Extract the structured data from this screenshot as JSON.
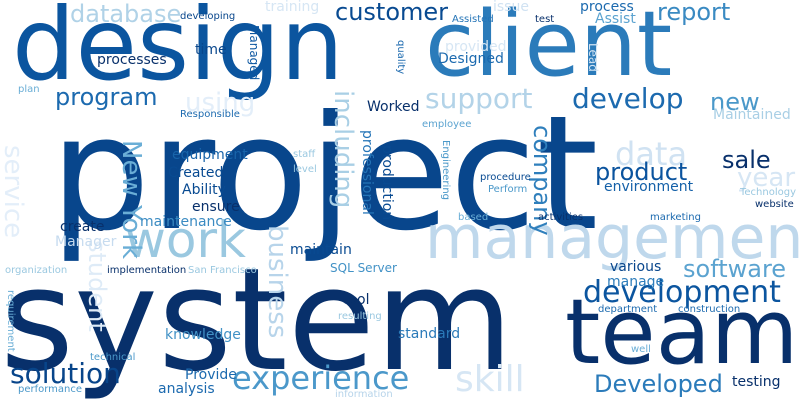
{
  "words": [
    {
      "text": "project",
      "color": "#08468c"
    },
    {
      "text": "system",
      "color": "#08306b"
    },
    {
      "text": "design",
      "color": "#0b559f"
    },
    {
      "text": "client",
      "color": "#2b7bba"
    },
    {
      "text": "team",
      "color": "#08306b"
    },
    {
      "text": "management",
      "color": "#bfd8ec"
    },
    {
      "text": "work",
      "color": "#9ac8e0"
    },
    {
      "text": "experience",
      "color": "#4b98ca"
    },
    {
      "text": "development",
      "color": "#0b559f"
    },
    {
      "text": "skill",
      "color": "#d6e6f4"
    },
    {
      "text": "customer",
      "color": "#084a91"
    },
    {
      "text": "report",
      "color": "#3a8ac2"
    },
    {
      "text": "program",
      "color": "#1c6aaf"
    },
    {
      "text": "support",
      "color": "#b3d3e8"
    },
    {
      "text": "develop",
      "color": "#1c6aaf"
    },
    {
      "text": "data",
      "color": "#d0e2f2"
    },
    {
      "text": "product",
      "color": "#0a539e"
    },
    {
      "text": "sale",
      "color": "#08306b"
    },
    {
      "text": "year",
      "color": "#d6e6f4"
    },
    {
      "text": "company",
      "color": "#2f7fbc"
    },
    {
      "text": "software",
      "color": "#5ba3d0"
    },
    {
      "text": "Developed",
      "color": "#2b7bba"
    },
    {
      "text": "solution",
      "color": "#08458a"
    },
    {
      "text": "new",
      "color": "#4a98c9"
    },
    {
      "text": "New York",
      "color": "#6aaed6"
    },
    {
      "text": "including",
      "color": "#a9cfe5"
    },
    {
      "text": "service",
      "color": "#e3eef9"
    },
    {
      "text": "student",
      "color": "#deebf7"
    },
    {
      "text": "business",
      "color": "#b7d4ea"
    },
    {
      "text": "database",
      "color": "#b0d2e7"
    },
    {
      "text": "using",
      "color": "#e3eef9"
    },
    {
      "text": "processes",
      "color": "#08306b"
    },
    {
      "text": "Designed",
      "color": "#1c6aaf"
    },
    {
      "text": "time",
      "color": "#08468c"
    },
    {
      "text": "Managed",
      "color": "#0d57a1"
    },
    {
      "text": "equipment",
      "color": "#1864aa"
    },
    {
      "text": "Created",
      "color": "#084a91"
    },
    {
      "text": "Ability",
      "color": "#084a91"
    },
    {
      "text": "ensure",
      "color": "#08306b"
    },
    {
      "text": "create",
      "color": "#08306b"
    },
    {
      "text": "maintenance",
      "color": "#3b8bc2"
    },
    {
      "text": "Manager",
      "color": "#c6dbef"
    },
    {
      "text": "maintain",
      "color": "#084a91"
    },
    {
      "text": "tool",
      "color": "#08306b"
    },
    {
      "text": "knowledge",
      "color": "#4292c6"
    },
    {
      "text": "standard",
      "color": "#2a7ab9"
    },
    {
      "text": "Provide",
      "color": "#1c6aaf"
    },
    {
      "text": "analysis",
      "color": "#1c6aaf"
    },
    {
      "text": "testing",
      "color": "#08306b"
    },
    {
      "text": "environment",
      "color": "#1460a8"
    },
    {
      "text": "various",
      "color": "#08468c"
    },
    {
      "text": "manage",
      "color": "#2d7dbb"
    },
    {
      "text": "professional",
      "color": "#2474b7"
    },
    {
      "text": "production",
      "color": "#084a91"
    },
    {
      "text": "Worked",
      "color": "#08306b"
    },
    {
      "text": "Maintained",
      "color": "#a9cfe5"
    },
    {
      "text": "SQL Server",
      "color": "#4292c6"
    },
    {
      "text": "training",
      "color": "#d6e6f4"
    },
    {
      "text": "developing",
      "color": "#08468c"
    },
    {
      "text": "Assisted",
      "color": "#2474b7"
    },
    {
      "text": "test",
      "color": "#08306b"
    },
    {
      "text": "process",
      "color": "#1c6aaf"
    },
    {
      "text": "Assist",
      "color": "#5ba3d0"
    },
    {
      "text": "issue",
      "color": "#d0e2f2"
    },
    {
      "text": "plan",
      "color": "#6aaed6"
    },
    {
      "text": "provided",
      "color": "#d6e6f4"
    },
    {
      "text": "Lead",
      "color": "#d0e2f2"
    },
    {
      "text": "quality",
      "color": "#1c6aaf"
    },
    {
      "text": "employee",
      "color": "#5ba3d0"
    },
    {
      "text": "Responsible",
      "color": "#1c6aaf"
    },
    {
      "text": "staff",
      "color": "#9ac8e0"
    },
    {
      "text": "level",
      "color": "#9ac8e0"
    },
    {
      "text": "procedure",
      "color": "#084a91"
    },
    {
      "text": "Perform",
      "color": "#4a98c9"
    },
    {
      "text": "Engineering",
      "color": "#4a98c9"
    },
    {
      "text": "based",
      "color": "#6aaed6"
    },
    {
      "text": "activities",
      "color": "#08306b"
    },
    {
      "text": "marketing",
      "color": "#1c6aaf"
    },
    {
      "text": "website",
      "color": "#08306b"
    },
    {
      "text": "Technology",
      "color": "#9ac8e0"
    },
    {
      "text": "organization",
      "color": "#9ac8e0"
    },
    {
      "text": "implementation",
      "color": "#08306b"
    },
    {
      "text": "San Francisco",
      "color": "#9ac8e0"
    },
    {
      "text": "requirement",
      "color": "#6aaed6"
    },
    {
      "text": "resulting",
      "color": "#9ac8e0"
    },
    {
      "text": "department",
      "color": "#1c6aaf"
    },
    {
      "text": "construction",
      "color": "#1c6aaf"
    },
    {
      "text": "technical",
      "color": "#4a98c9"
    },
    {
      "text": "performance",
      "color": "#4a98c9"
    },
    {
      "text": "information",
      "color": "#b7d4ea"
    },
    {
      "text": "well",
      "color": "#6aaed6"
    }
  ]
}
